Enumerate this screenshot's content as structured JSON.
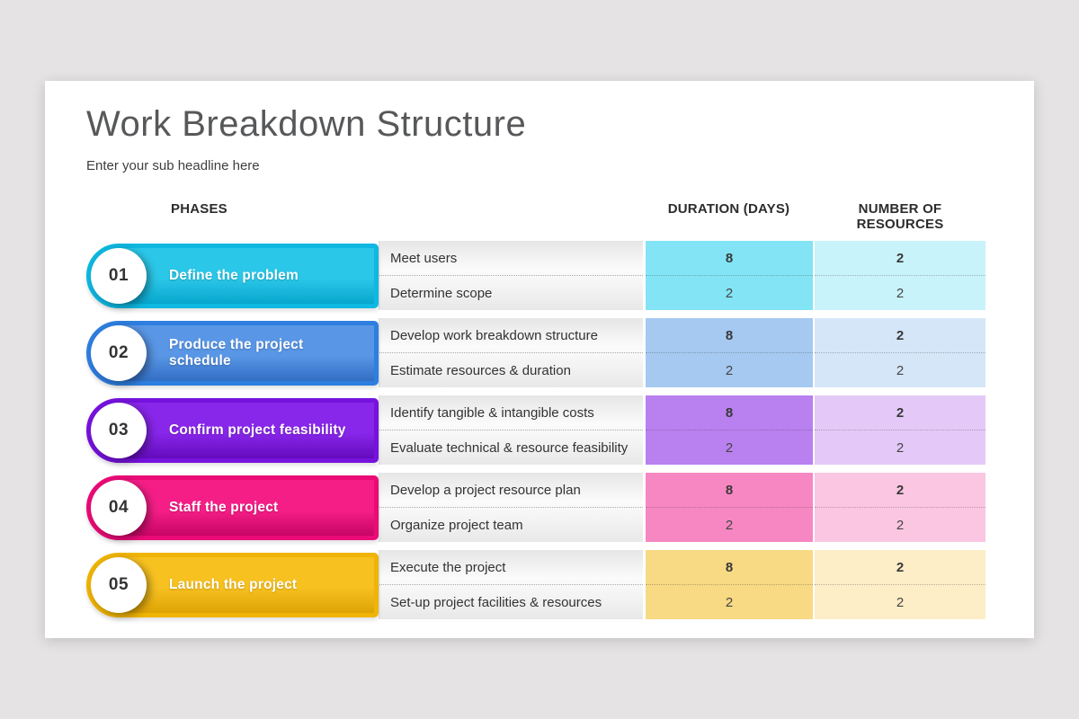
{
  "slide": {
    "title": "Work Breakdown Structure",
    "subtitle": "Enter your sub headline here"
  },
  "table": {
    "headers": {
      "phases": "PHASES",
      "duration": "DURATION (DAYS)",
      "resources": "NUMBER OF RESOURCES"
    },
    "phases": [
      {
        "number": "01",
        "label": "Define the problem",
        "colors": {
          "ring": "#0fb8e0",
          "bar": "#2bc7e8",
          "bar_dark": "#00a0c8",
          "duration_bg": "#82e4f4",
          "resources_bg": "#c9f3fa"
        },
        "tasks": [
          {
            "name": "Meet users",
            "duration": "8",
            "resources": "2"
          },
          {
            "name": "Determine scope",
            "duration": "2",
            "resources": "2"
          }
        ]
      },
      {
        "number": "02",
        "label": "Produce the project schedule",
        "colors": {
          "ring": "#2e7fe0",
          "bar": "#5996e5",
          "bar_dark": "#2a67bf",
          "duration_bg": "#a5c9f1",
          "resources_bg": "#d6e6f9"
        },
        "tasks": [
          {
            "name": "Develop work breakdown structure",
            "duration": "8",
            "resources": "2"
          },
          {
            "name": "Estimate resources & duration",
            "duration": "2",
            "resources": "2"
          }
        ]
      },
      {
        "number": "03",
        "label": "Confirm project feasibility",
        "colors": {
          "ring": "#7612dd",
          "bar": "#8826ea",
          "bar_dark": "#5c06b4",
          "duration_bg": "#b980f0",
          "resources_bg": "#e4c9f8"
        },
        "tasks": [
          {
            "name": "Identify tangible & intangible costs",
            "duration": "8",
            "resources": "2"
          },
          {
            "name": "Evaluate technical & resource feasibility",
            "duration": "2",
            "resources": "2"
          }
        ]
      },
      {
        "number": "04",
        "label": "Staff the project",
        "colors": {
          "ring": "#ea0b77",
          "bar": "#f51e87",
          "bar_dark": "#bf005e",
          "duration_bg": "#f687c2",
          "resources_bg": "#fbc6e2"
        },
        "tasks": [
          {
            "name": "Develop a project resource plan",
            "duration": "8",
            "resources": "2"
          },
          {
            "name": "Organize project team",
            "duration": "2",
            "resources": "2"
          }
        ]
      },
      {
        "number": "05",
        "label": "Launch the project",
        "colors": {
          "ring": "#efb405",
          "bar": "#f7c120",
          "bar_dark": "#d99e00",
          "duration_bg": "#f8d984",
          "resources_bg": "#fdeec7"
        },
        "tasks": [
          {
            "name": "Execute the project",
            "duration": "8",
            "resources": "2"
          },
          {
            "name": "Set-up project facilities & resources",
            "duration": "2",
            "resources": "2"
          }
        ]
      }
    ]
  },
  "colors": {
    "page_bg": "#e5e3e4",
    "canvas_bg": "#ffffff",
    "title_color": "#57585a",
    "text_color": "#333333"
  }
}
